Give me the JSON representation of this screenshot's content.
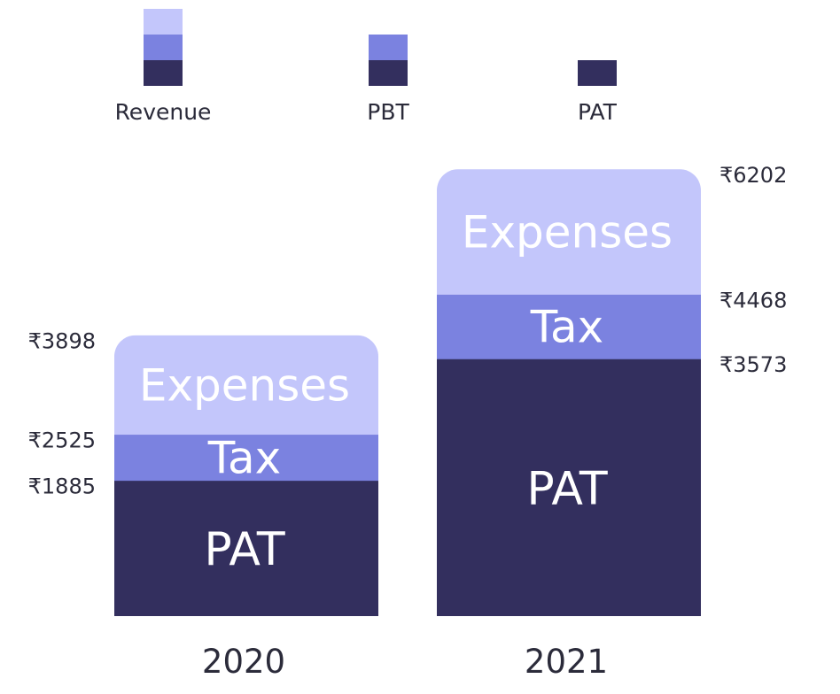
{
  "chart_data": {
    "type": "bar",
    "stacked": true,
    "categories": [
      "2020",
      "2021"
    ],
    "legend": {
      "placement": "top",
      "items": [
        {
          "label": "Revenue",
          "stack": [
            "PAT",
            "Tax",
            "Expenses"
          ]
        },
        {
          "label": "PBT",
          "stack": [
            "PAT",
            "Tax"
          ]
        },
        {
          "label": "PAT",
          "stack": [
            "PAT"
          ]
        }
      ]
    },
    "series": [
      {
        "name": "PAT",
        "values": [
          1885,
          3573
        ]
      },
      {
        "name": "Tax",
        "values": [
          640,
          895
        ]
      },
      {
        "name": "Expenses",
        "values": [
          1373,
          1734
        ]
      }
    ],
    "value_labels": [
      [
        "₹3898",
        "₹2525",
        "₹1885"
      ],
      [
        "₹6202",
        "₹4468",
        "₹3573"
      ]
    ],
    "colors": {
      "PAT": "#332f5e",
      "Tax": "#7b82e0",
      "Expenses": "#c3c6fb"
    }
  }
}
